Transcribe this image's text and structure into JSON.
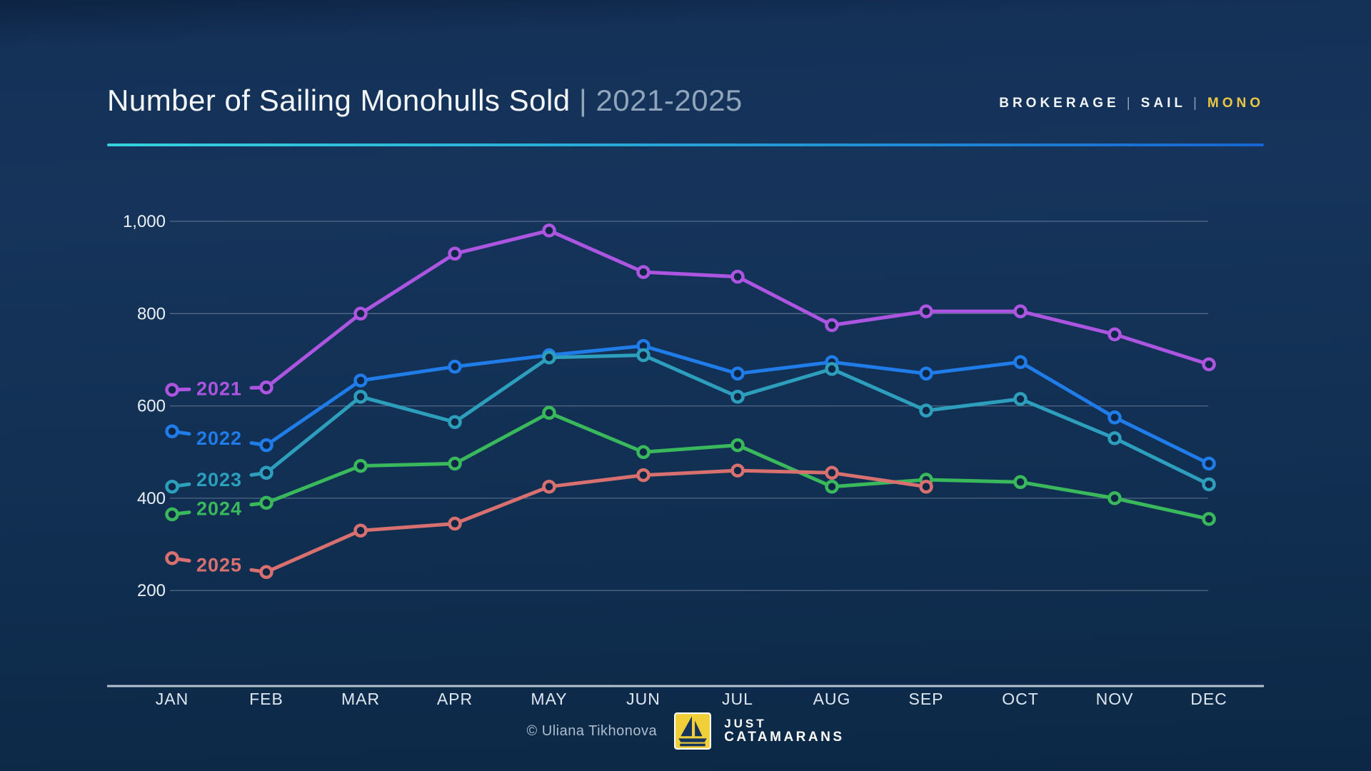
{
  "header": {
    "title": "Number of Sailing Monohulls Sold",
    "separator": "|",
    "period": "2021-2025",
    "tags": [
      "BROKERAGE",
      "SAIL",
      "MONO"
    ],
    "tag_separator": "|",
    "tag_highlight_color": "#ecc743"
  },
  "chart_data": {
    "type": "line",
    "title": "Number of Sailing Monohulls Sold 2021-2025",
    "categories": [
      "JAN",
      "FEB",
      "MAR",
      "APR",
      "MAY",
      "JUN",
      "JUL",
      "AUG",
      "SEP",
      "OCT",
      "NOV",
      "DEC"
    ],
    "series": [
      {
        "name": "2021",
        "color": "#ab55e0",
        "values": [
          635,
          640,
          800,
          930,
          980,
          890,
          880,
          775,
          805,
          805,
          755,
          690
        ]
      },
      {
        "name": "2022",
        "color": "#1f7ce8",
        "values": [
          545,
          515,
          655,
          685,
          710,
          730,
          670,
          695,
          670,
          695,
          575,
          475
        ]
      },
      {
        "name": "2023",
        "color": "#2d9fbd",
        "values": [
          425,
          455,
          620,
          565,
          705,
          710,
          620,
          680,
          590,
          615,
          530,
          430
        ]
      },
      {
        "name": "2024",
        "color": "#3ab95c",
        "values": [
          365,
          390,
          470,
          475,
          585,
          500,
          515,
          425,
          440,
          435,
          400,
          355
        ]
      },
      {
        "name": "2025",
        "color": "#d97070",
        "values": [
          270,
          240,
          330,
          345,
          425,
          450,
          460,
          455,
          425,
          null,
          null,
          null
        ]
      }
    ],
    "ylim": [
      200,
      1000
    ],
    "yticks": [
      1000,
      800,
      600,
      400,
      200
    ],
    "grid": true,
    "legend_position": "inline-left-on-line",
    "xlabel": "",
    "ylabel": ""
  },
  "footer": {
    "copyright": "© Uliana Tikhonova",
    "brand_line1": "JUST",
    "brand_line2": "CATAMARANS",
    "logo_icon": "sailboat-icon",
    "logo_bg_color": "#f1cf39"
  }
}
